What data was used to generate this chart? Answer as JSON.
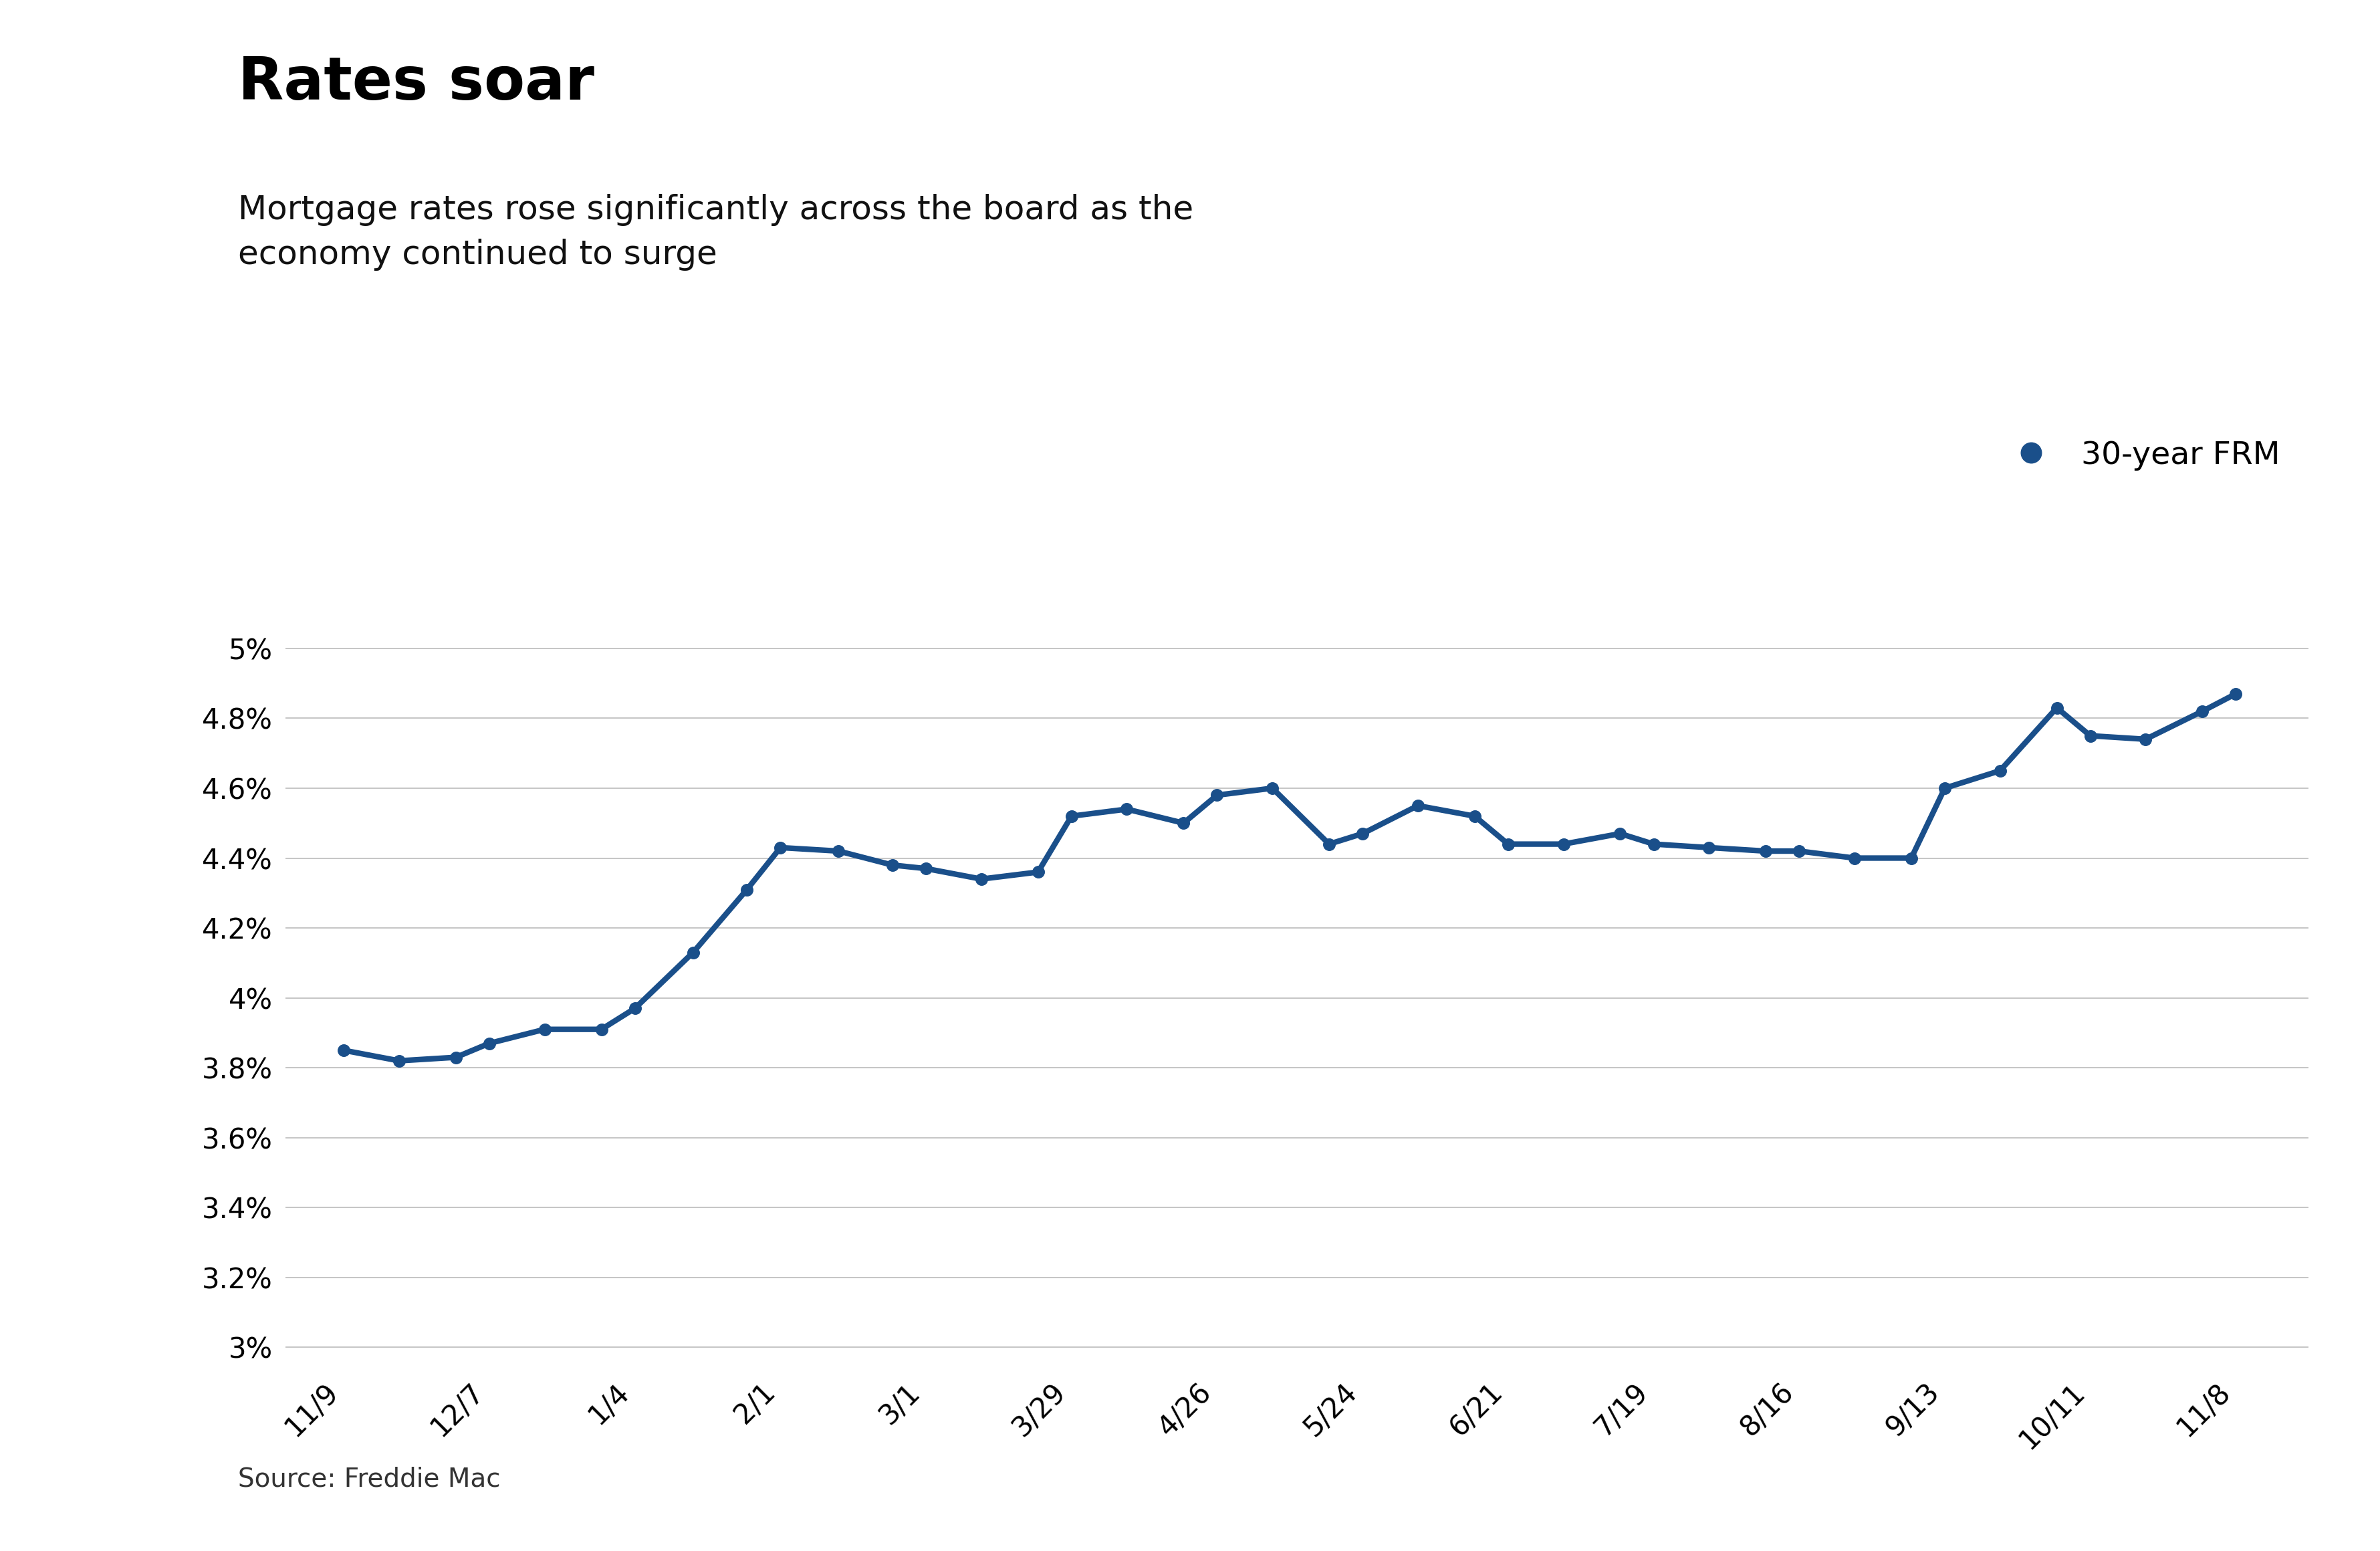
{
  "title": "Rates soar",
  "subtitle": "Mortgage rates rose significantly across the board as the\neconomy continued to surge",
  "source": "Source: Freddie Mac",
  "legend_label": "30-year FRM",
  "line_color": "#1a4f8a",
  "background_color": "#ffffff",
  "grid_color": "#bbbbbb",
  "x_labels": [
    "11/9",
    "12/7",
    "1/4",
    "2/1",
    "3/1",
    "3/29",
    "4/26",
    "5/24",
    "6/21",
    "7/19",
    "8/16",
    "9/13",
    "10/11",
    "11/8"
  ],
  "data_x": [
    0.0,
    0.38,
    0.77,
    1.0,
    1.38,
    1.77,
    2.0,
    2.4,
    2.77,
    3.0,
    3.4,
    3.77,
    4.0,
    4.38,
    4.77,
    5.0,
    5.38,
    5.77,
    6.0,
    6.38,
    6.77,
    7.0,
    7.38,
    7.77,
    8.0,
    8.38,
    8.77,
    9.0,
    9.38,
    9.77,
    10.0,
    10.38,
    10.77,
    11.0,
    11.38,
    11.77,
    12.0,
    12.38,
    12.77,
    13.0
  ],
  "data_y": [
    3.85,
    3.82,
    3.83,
    3.87,
    3.91,
    3.91,
    3.97,
    4.13,
    4.31,
    4.43,
    4.42,
    4.38,
    4.37,
    4.34,
    4.36,
    4.52,
    4.54,
    4.5,
    4.58,
    4.6,
    4.44,
    4.47,
    4.55,
    4.52,
    4.44,
    4.44,
    4.47,
    4.44,
    4.43,
    4.42,
    4.42,
    4.4,
    4.4,
    4.6,
    4.65,
    4.83,
    4.75,
    4.74,
    4.82,
    4.87
  ],
  "yticks": [
    3.0,
    3.2,
    3.4,
    3.6,
    3.8,
    4.0,
    4.2,
    4.4,
    4.6,
    4.8,
    5.0
  ],
  "ylim": [
    2.95,
    5.08
  ],
  "xlim": [
    -0.4,
    13.5
  ],
  "title_fontsize": 64,
  "subtitle_fontsize": 36,
  "axis_fontsize": 30,
  "legend_fontsize": 34,
  "source_fontsize": 28
}
